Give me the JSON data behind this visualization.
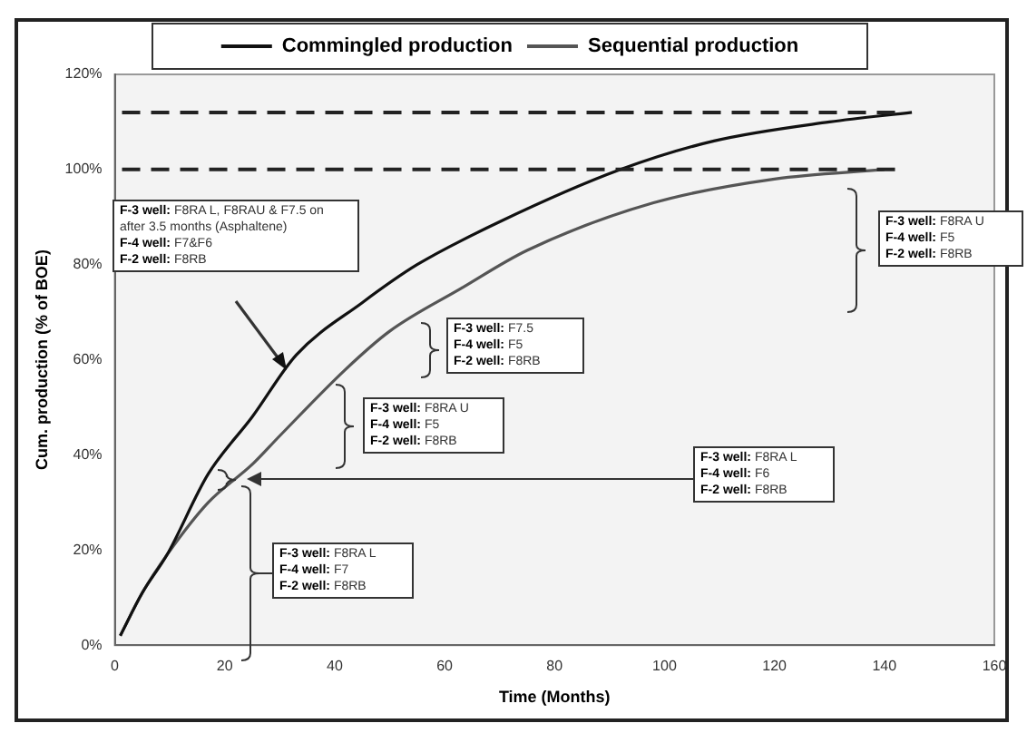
{
  "chart_data": {
    "type": "line",
    "xlabel": "Time (Months)",
    "ylabel": "Cum. production (% of BOE)",
    "xlim": [
      0,
      160
    ],
    "xticks": [
      0,
      20,
      40,
      60,
      80,
      100,
      120,
      140,
      160
    ],
    "ylim": [
      0,
      120
    ],
    "yticks": [
      {
        "value": 0,
        "label": "0%"
      },
      {
        "value": 20,
        "label": "20%"
      },
      {
        "value": 40,
        "label": "40%"
      },
      {
        "value": 60,
        "label": "60%"
      },
      {
        "value": 80,
        "label": "80%"
      },
      {
        "value": 100,
        "label": "100%"
      },
      {
        "value": 120,
        "label": "120%"
      }
    ],
    "grid": false,
    "legend": "top",
    "marker": "none",
    "line_style": "solid",
    "series": [
      {
        "name": "Commingled production",
        "color": "#111111",
        "x": [
          1,
          5,
          9.5,
          17,
          25,
          33,
          45,
          55,
          70,
          92,
          109,
          130,
          145
        ],
        "values": [
          2,
          11,
          19,
          36,
          48,
          61,
          72,
          80,
          89,
          100,
          106,
          110,
          112
        ]
      },
      {
        "name": "Sequential production",
        "color": "#555555",
        "x": [
          1,
          5,
          9.5,
          17,
          25,
          30,
          42,
          50,
          63,
          75,
          98,
          120,
          140
        ],
        "values": [
          2,
          11,
          19,
          30,
          38,
          44,
          58,
          66,
          75,
          83,
          93,
          98,
          100
        ]
      }
    ],
    "ref_lines": [
      {
        "axis": "y",
        "value": 112,
        "color": "#222222",
        "line_style": "dashed"
      },
      {
        "axis": "y",
        "value": 100,
        "color": "#222222",
        "line_style": "dashed"
      }
    ],
    "annotations": [
      "F-3 well: F8RA L, F8RAU & F7.5 on after 3.5 months (Asphaltene)\nF-4 well: F7&F6\nF-2 well: F8RB",
      "F-3 well: F8RA U\nF-4 well: F5\nF-2 well: F8RB",
      "F-3 well: F7.5\nF-4 well: F5\nF-2 well: F8RB",
      "F-3 well: F8RA U\nF-4 well: F5\nF-2 well: F8RB",
      "F-3 well: F8RA L\nF-4 well: F6\nF-2 well: F8RB",
      "F-3 well: F8RA L\nF-4 well: F7\nF-2 well: F8RB"
    ]
  }
}
